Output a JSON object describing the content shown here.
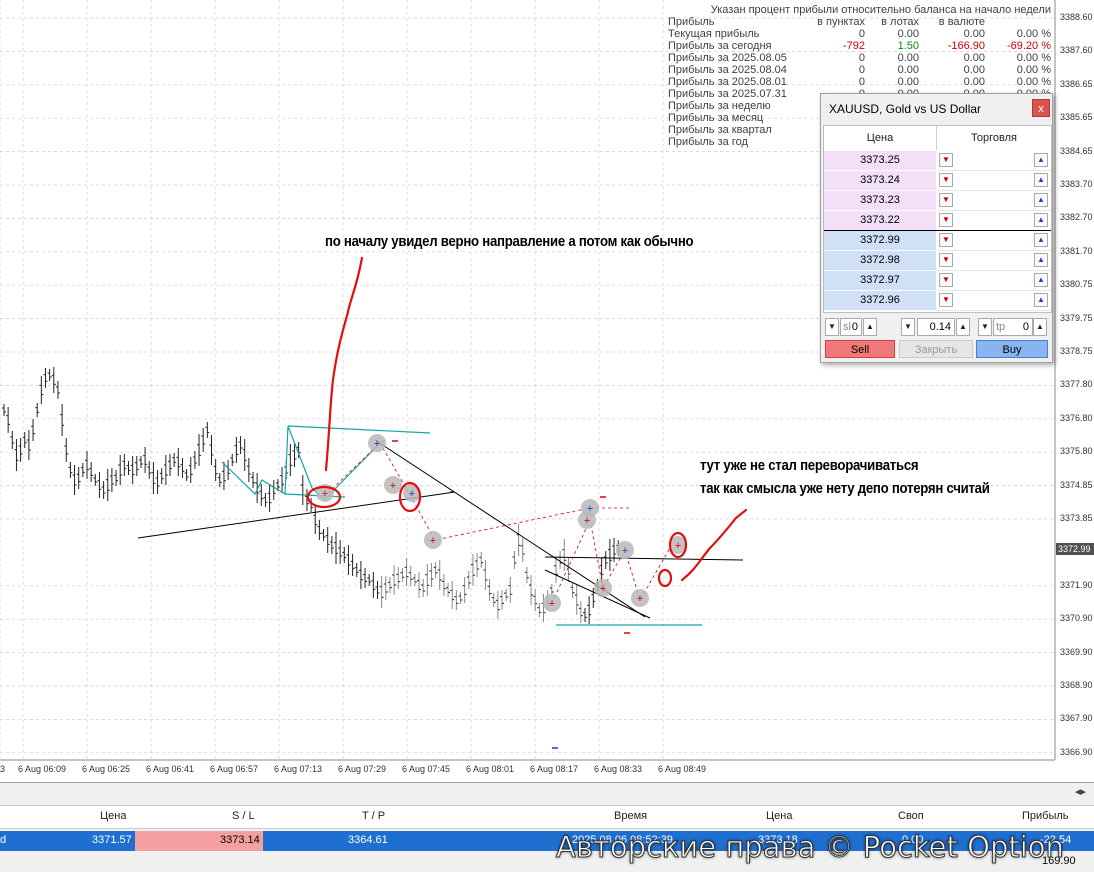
{
  "stats": {
    "title": "Указан процент прибыли относительно баланса на начало недели",
    "headers": [
      "Прибыль",
      "в пунктах",
      "в лотах",
      "в валюте",
      ""
    ],
    "rows": [
      {
        "label": "Текущая прибыль",
        "points": "0",
        "lots": "0.00",
        "currency": "0.00",
        "percent": "0.00 %",
        "color": ""
      },
      {
        "label": "Прибыль за сегодня",
        "points": "-792",
        "lots": "1.50",
        "currency": "-166.90",
        "percent": "-69.20 %",
        "color": "neg"
      },
      {
        "label": "Прибыль за 2025.08.05",
        "points": "0",
        "lots": "0.00",
        "currency": "0.00",
        "percent": "0.00 %",
        "color": ""
      },
      {
        "label": "Прибыль за 2025.08.04",
        "points": "0",
        "lots": "0.00",
        "currency": "0.00",
        "percent": "0.00 %",
        "color": ""
      },
      {
        "label": "Прибыль за 2025.08.01",
        "points": "0",
        "lots": "0.00",
        "currency": "0.00",
        "percent": "0.00 %",
        "color": ""
      },
      {
        "label": "Прибыль за 2025.07.31",
        "points": "0",
        "lots": "0.00",
        "currency": "0.00",
        "percent": "0.00 %",
        "color": ""
      },
      {
        "label": "Прибыль за неделю",
        "points": "",
        "lots": "",
        "currency": "",
        "percent": "",
        "color": ""
      },
      {
        "label": "Прибыль за месяц",
        "points": "",
        "lots": "",
        "currency": "",
        "percent": "",
        "color": ""
      },
      {
        "label": "Прибыль за квартал",
        "points": "",
        "lots": "",
        "currency": "",
        "percent": "",
        "color": ""
      },
      {
        "label": "Прибыль за год",
        "points": "",
        "lots": "",
        "currency": "",
        "percent": "",
        "color": ""
      }
    ]
  },
  "price_axis": [
    "3388.60",
    "3387.60",
    "3386.65",
    "3385.65",
    "3384.65",
    "3383.70",
    "3382.70",
    "3381.70",
    "3380.75",
    "3379.75",
    "3378.75",
    "3377.80",
    "3376.80",
    "3375.80",
    "3374.85",
    "3373.85",
    "3372.99",
    "3371.90",
    "3370.90",
    "3369.90",
    "3368.90",
    "3367.90",
    "3366.90"
  ],
  "current_price": "3372.99",
  "time_axis": [
    "3",
    "6 Aug 06:09",
    "6 Aug 06:25",
    "6 Aug 06:41",
    "6 Aug 06:57",
    "6 Aug 07:13",
    "6 Aug 07:29",
    "6 Aug 07:45",
    "6 Aug 08:01",
    "6 Aug 08:17",
    "6 Aug 08:33",
    "6 Aug 08:49"
  ],
  "annotations": {
    "top": "по началу увидел верно направление а потом как обычно",
    "right_line1": "тут уже не стал переворачиваться",
    "right_line2": "так как смысла уже нету депо потерян считай"
  },
  "panel": {
    "title": "XAUUSD, Gold vs US Dollar",
    "close": "x",
    "col_price": "Цена",
    "col_trade": "Торговля",
    "asks": [
      "3373.25",
      "3373.24",
      "3373.23",
      "3373.22"
    ],
    "bids": [
      "3372.99",
      "3372.98",
      "3372.97",
      "3372.96"
    ],
    "sl_label": "sl",
    "sl_value": "0",
    "volume": "0.14",
    "tp_label": "tp",
    "tp_value": "0",
    "sell": "Sell",
    "close_btn": "Закрыть",
    "buy": "Buy",
    "sell_color": "#f07878",
    "buy_color": "#8ab4f0"
  },
  "trades": {
    "headers": {
      "price": "Цена",
      "sl": "S / L",
      "tp": "T / P",
      "time": "Время",
      "price2": "Цена",
      "swap": "Своп",
      "profit": "Прибыль"
    },
    "row": {
      "open_price": "3371.57",
      "sl": "3373.14",
      "tp": "3364.61",
      "time": "2025.08.06 08:52:39",
      "price": "3373.18",
      "swap": "0.00",
      "profit": "-22.54"
    },
    "row_color": "#1f6fd0",
    "balance_tail": "169.90"
  },
  "watermark": "Авторские права © Pocket Option"
}
